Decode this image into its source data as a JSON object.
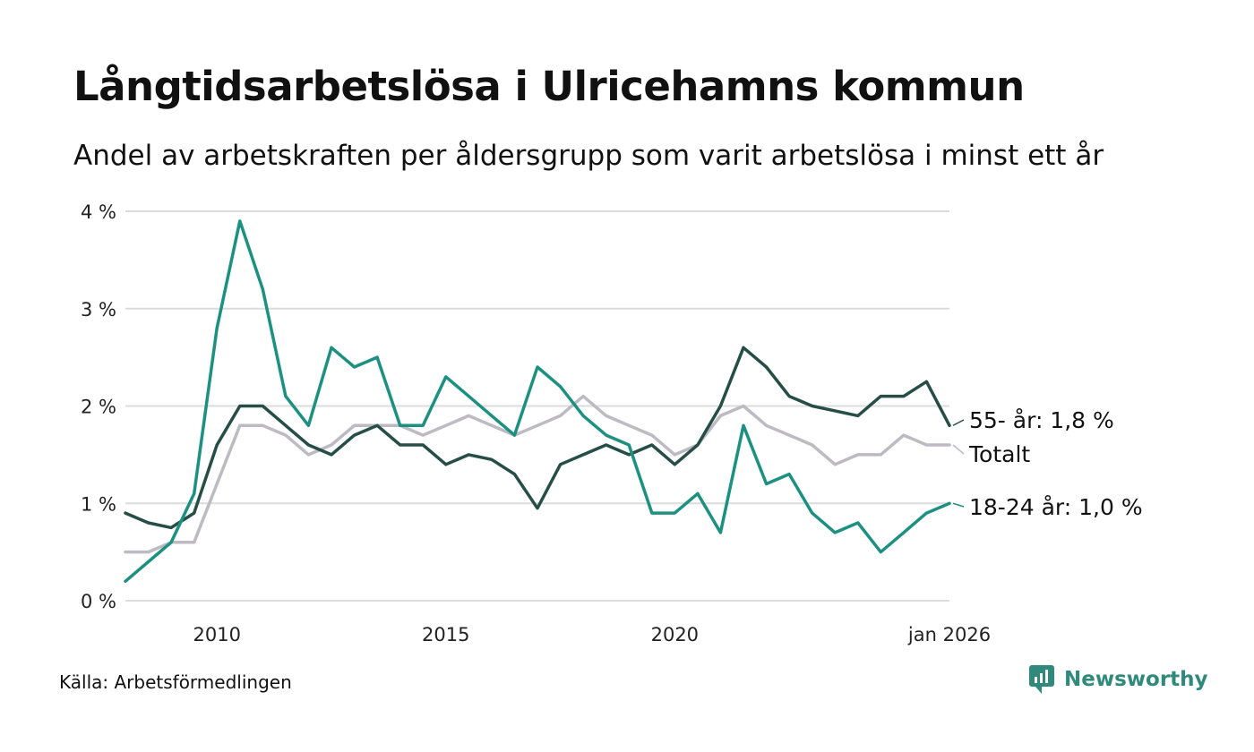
{
  "header": {
    "title": "Långtidsarbetslösa i Ulricehamns kommun",
    "subtitle": "Andel av arbetskraften per åldersgrupp som varit arbetslösa i minst ett år"
  },
  "footer": {
    "source": "Källa: Arbetsförmedlingen",
    "brand": "Newsworthy",
    "brand_icon": "newsworthy-logo-icon"
  },
  "chart_data": {
    "type": "line",
    "title": "Långtidsarbetslösa i Ulricehamns kommun",
    "subtitle": "Andel av arbetskraften per åldersgrupp som varit arbetslösa i minst ett år",
    "xlabel": "",
    "ylabel": "",
    "x_unit": "year",
    "xlim": [
      2008.0,
      2026.0
    ],
    "ylim": [
      0,
      4
    ],
    "y_ticks": [
      0,
      1,
      2,
      3,
      4
    ],
    "y_tick_labels": [
      "0 %",
      "1 %",
      "2 %",
      "3 %",
      "4 %"
    ],
    "x_ticks": [
      2010,
      2015,
      2020,
      2026.0
    ],
    "x_tick_labels": [
      "2010",
      "2015",
      "2020",
      "jan 2026"
    ],
    "grid": true,
    "series": [
      {
        "name": "Totalt",
        "label": "Totalt",
        "color": "#bdbac4",
        "points": [
          [
            2008.0,
            0.5
          ],
          [
            2008.5,
            0.5
          ],
          [
            2009.0,
            0.6
          ],
          [
            2009.5,
            0.6
          ],
          [
            2010.0,
            1.2
          ],
          [
            2010.5,
            1.8
          ],
          [
            2011.0,
            1.8
          ],
          [
            2011.5,
            1.7
          ],
          [
            2012.0,
            1.5
          ],
          [
            2012.5,
            1.6
          ],
          [
            2013.0,
            1.8
          ],
          [
            2013.5,
            1.8
          ],
          [
            2014.0,
            1.8
          ],
          [
            2014.5,
            1.7
          ],
          [
            2015.0,
            1.8
          ],
          [
            2015.5,
            1.9
          ],
          [
            2016.0,
            1.8
          ],
          [
            2016.5,
            1.7
          ],
          [
            2017.0,
            1.8
          ],
          [
            2017.5,
            1.9
          ],
          [
            2018.0,
            2.1
          ],
          [
            2018.5,
            1.9
          ],
          [
            2019.0,
            1.8
          ],
          [
            2019.5,
            1.7
          ],
          [
            2020.0,
            1.5
          ],
          [
            2020.5,
            1.6
          ],
          [
            2021.0,
            1.9
          ],
          [
            2021.5,
            2.0
          ],
          [
            2022.0,
            1.8
          ],
          [
            2022.5,
            1.7
          ],
          [
            2023.0,
            1.6
          ],
          [
            2023.5,
            1.4
          ],
          [
            2024.0,
            1.5
          ],
          [
            2024.5,
            1.5
          ],
          [
            2025.0,
            1.7
          ],
          [
            2025.5,
            1.6
          ],
          [
            2026.0,
            1.6
          ]
        ]
      },
      {
        "name": "55- år",
        "label": "55- år: 1,8 %",
        "color": "#264e47",
        "points": [
          [
            2008.0,
            0.9
          ],
          [
            2008.5,
            0.8
          ],
          [
            2009.0,
            0.75
          ],
          [
            2009.5,
            0.9
          ],
          [
            2010.0,
            1.6
          ],
          [
            2010.5,
            2.0
          ],
          [
            2011.0,
            2.0
          ],
          [
            2011.5,
            1.8
          ],
          [
            2012.0,
            1.6
          ],
          [
            2012.5,
            1.5
          ],
          [
            2013.0,
            1.7
          ],
          [
            2013.5,
            1.8
          ],
          [
            2014.0,
            1.6
          ],
          [
            2014.5,
            1.6
          ],
          [
            2015.0,
            1.4
          ],
          [
            2015.5,
            1.5
          ],
          [
            2016.0,
            1.45
          ],
          [
            2016.5,
            1.3
          ],
          [
            2017.0,
            0.95
          ],
          [
            2017.5,
            1.4
          ],
          [
            2018.0,
            1.5
          ],
          [
            2018.5,
            1.6
          ],
          [
            2019.0,
            1.5
          ],
          [
            2019.5,
            1.6
          ],
          [
            2020.0,
            1.4
          ],
          [
            2020.5,
            1.6
          ],
          [
            2021.0,
            2.0
          ],
          [
            2021.5,
            2.6
          ],
          [
            2022.0,
            2.4
          ],
          [
            2022.5,
            2.1
          ],
          [
            2023.0,
            2.0
          ],
          [
            2023.5,
            1.95
          ],
          [
            2024.0,
            1.9
          ],
          [
            2024.5,
            2.1
          ],
          [
            2025.0,
            2.1
          ],
          [
            2025.5,
            2.25
          ],
          [
            2026.0,
            1.8
          ]
        ]
      },
      {
        "name": "18-24 år",
        "label": "18-24 år: 1,0 %",
        "color": "#1c9181",
        "points": [
          [
            2008.0,
            0.2
          ],
          [
            2008.5,
            0.4
          ],
          [
            2009.0,
            0.6
          ],
          [
            2009.5,
            1.1
          ],
          [
            2010.0,
            2.8
          ],
          [
            2010.5,
            3.9
          ],
          [
            2011.0,
            3.2
          ],
          [
            2011.5,
            2.1
          ],
          [
            2012.0,
            1.8
          ],
          [
            2012.5,
            2.6
          ],
          [
            2013.0,
            2.4
          ],
          [
            2013.5,
            2.5
          ],
          [
            2014.0,
            1.8
          ],
          [
            2014.5,
            1.8
          ],
          [
            2015.0,
            2.3
          ],
          [
            2015.5,
            2.1
          ],
          [
            2016.0,
            1.9
          ],
          [
            2016.5,
            1.7
          ],
          [
            2017.0,
            2.4
          ],
          [
            2017.5,
            2.2
          ],
          [
            2018.0,
            1.9
          ],
          [
            2018.5,
            1.7
          ],
          [
            2019.0,
            1.6
          ],
          [
            2019.5,
            0.9
          ],
          [
            2020.0,
            0.9
          ],
          [
            2020.5,
            1.1
          ],
          [
            2021.0,
            0.7
          ],
          [
            2021.5,
            1.8
          ],
          [
            2022.0,
            1.2
          ],
          [
            2022.5,
            1.3
          ],
          [
            2023.0,
            0.9
          ],
          [
            2023.5,
            0.7
          ],
          [
            2024.0,
            0.8
          ],
          [
            2024.5,
            0.5
          ],
          [
            2025.0,
            0.7
          ],
          [
            2025.5,
            0.9
          ],
          [
            2026.0,
            1.0
          ]
        ]
      }
    ]
  }
}
